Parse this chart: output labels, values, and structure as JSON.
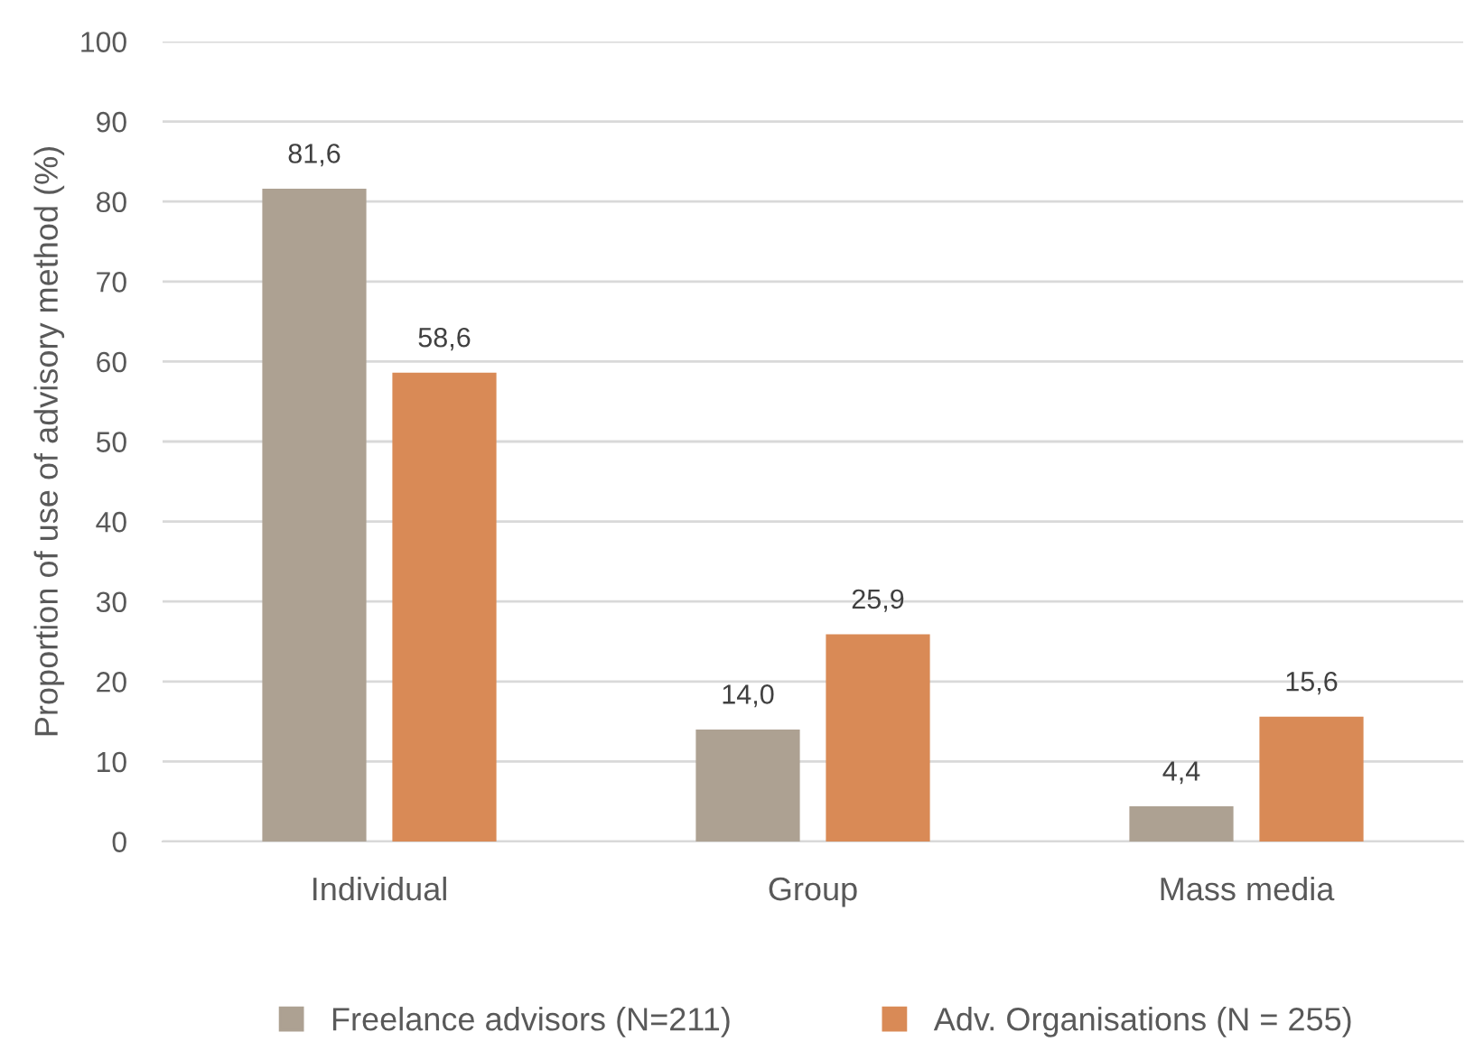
{
  "chart_data": {
    "type": "bar",
    "ylabel": "Proportion of use of advisory method (%)",
    "categories": [
      "Individual",
      "Group",
      "Mass media"
    ],
    "series": [
      {
        "name": "Freelance advisors (N=211)",
        "color": "#ada192",
        "values": [
          81.6,
          14.0,
          4.4
        ],
        "value_labels": [
          "81,6",
          "14,0",
          "4,4"
        ]
      },
      {
        "name": "Adv. Organisations (N = 255)",
        "color": "#d98a56",
        "values": [
          58.6,
          25.9,
          15.6
        ],
        "value_labels": [
          "58,6",
          "25,9",
          "15,6"
        ]
      }
    ],
    "ylim": [
      0,
      100
    ],
    "yticks": [
      0,
      10,
      20,
      30,
      40,
      50,
      60,
      70,
      80,
      90,
      100
    ],
    "grid": "y",
    "legend": "bottom"
  }
}
